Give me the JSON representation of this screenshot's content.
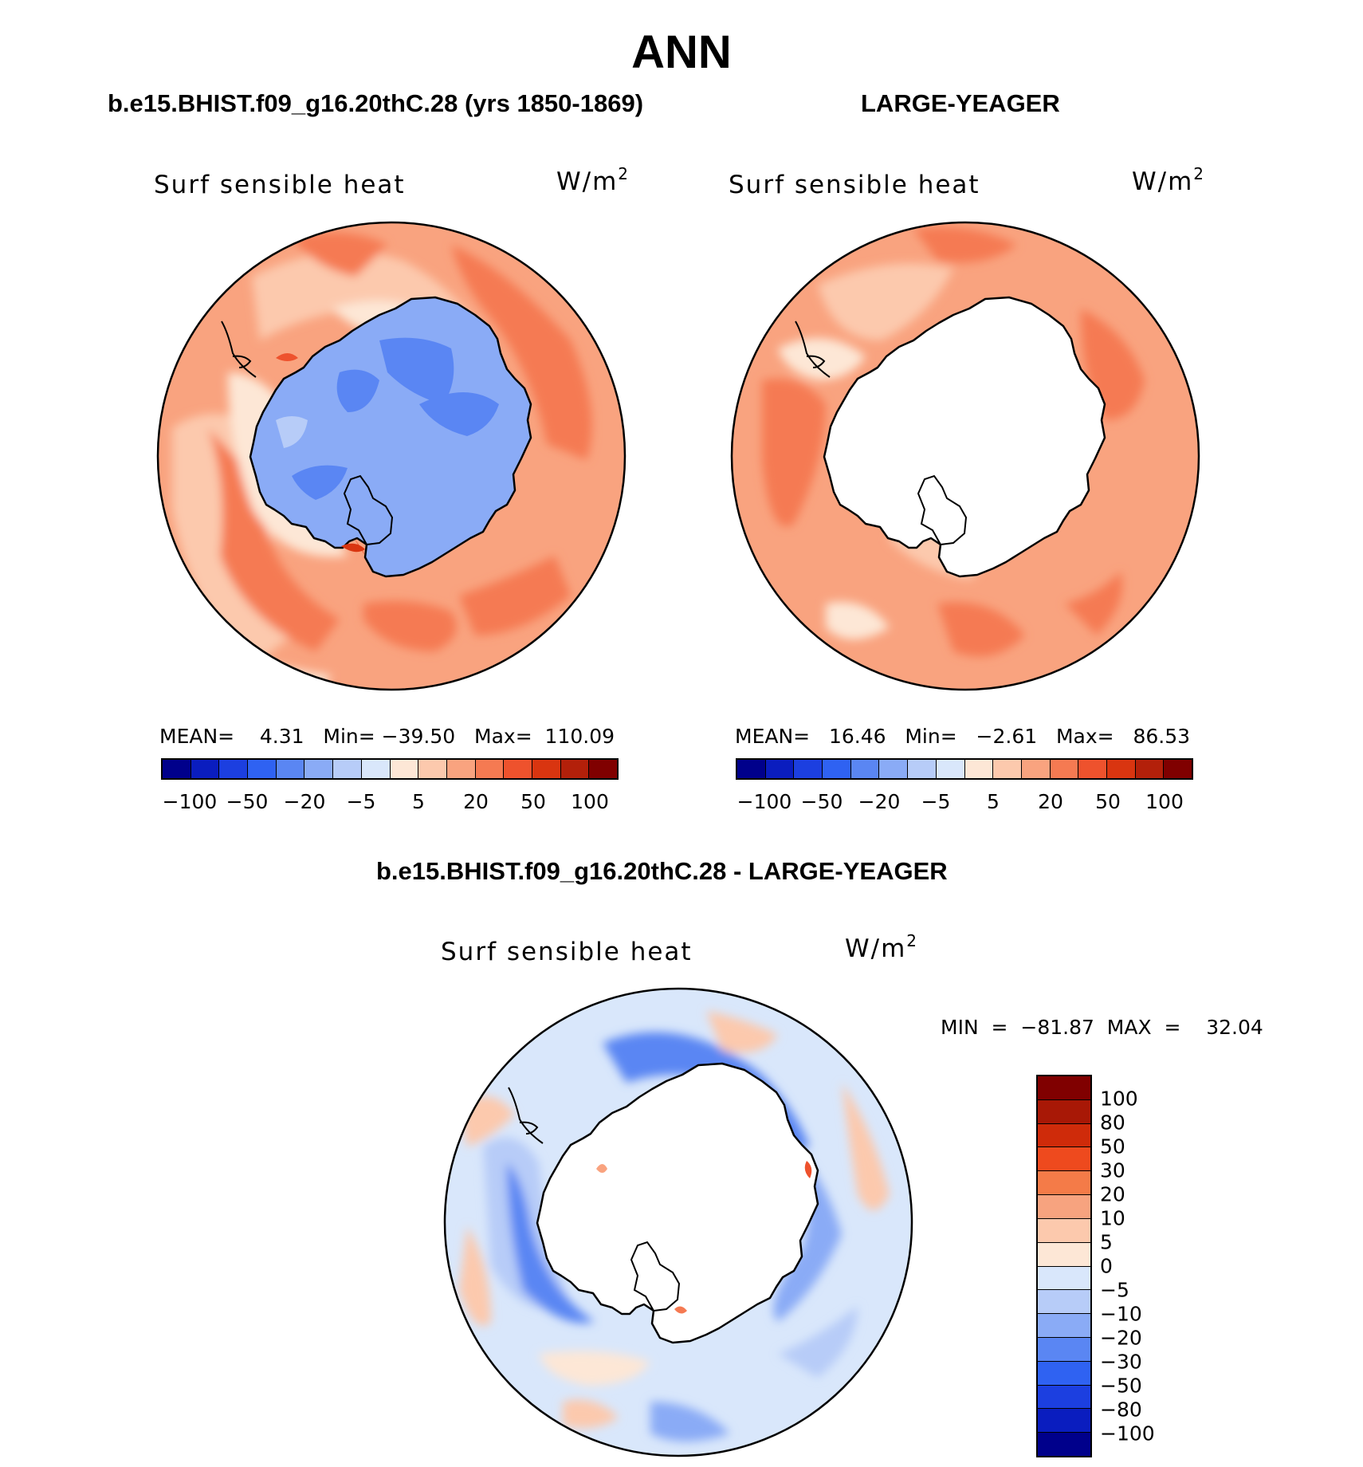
{
  "title": "ANN",
  "panels": [
    {
      "title": "b.e15.BHIST.f09_g16.20thC.28 (yrs 1850-1869)",
      "variable": "Surf sensible heat",
      "units": "W/m",
      "units_sup": "2",
      "stats": "MEAN=    4.31   Min= −39.50   Max=  110.09",
      "levels": [
        "−100",
        "−50",
        "−20",
        "−5",
        "5",
        "20",
        "50",
        "100"
      ]
    },
    {
      "title": "LARGE-YEAGER",
      "variable": "Surf sensible heat",
      "units": "W/m",
      "units_sup": "2",
      "stats": "MEAN=   16.46   Min=   −2.61   Max=   86.53",
      "levels": [
        "−100",
        "−50",
        "−20",
        "−5",
        "5",
        "20",
        "50",
        "100"
      ]
    }
  ],
  "diff": {
    "title": "b.e15.BHIST.f09_g16.20thC.28 - LARGE-YEAGER",
    "variable": "Surf sensible heat",
    "units": "W/m",
    "units_sup": "2",
    "minmax": "MIN  =  −81.87  MAX  =    32.04",
    "levels": [
      "100",
      "80",
      "50",
      "30",
      "20",
      "10",
      "5",
      "0",
      "−5",
      "−10",
      "−20",
      "−30",
      "−50",
      "−80",
      "−100"
    ]
  },
  "colors": {
    "abs_scale": [
      "#00008b",
      "#0a1dbf",
      "#1c3fe0",
      "#2f62f2",
      "#5a86f3",
      "#8aabf6",
      "#b7ccf8",
      "#d9e7fb",
      "#fde7d6",
      "#fcc9ad",
      "#f9a37f",
      "#f57a52",
      "#ee522d",
      "#d93510",
      "#b3200a",
      "#800000"
    ],
    "diff_scale": [
      "#800000",
      "#a81806",
      "#cf2b0a",
      "#ee4a1e",
      "#f47b48",
      "#f7a37f",
      "#fcc9ad",
      "#fde7d6",
      "#d9e7fb",
      "#b7ccf8",
      "#8aabf6",
      "#5a86f3",
      "#2f62f2",
      "#1c3fe0",
      "#0a1dbf",
      "#00008b"
    ]
  }
}
